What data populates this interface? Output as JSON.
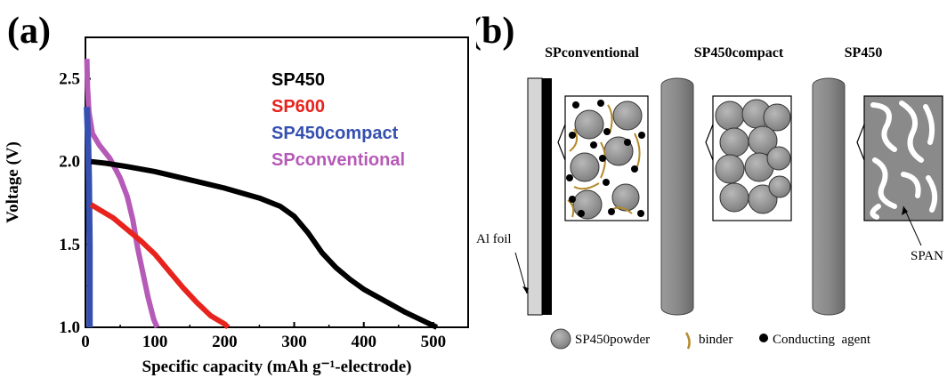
{
  "panel_a": {
    "label": "(a)"
  },
  "panel_b": {
    "label": "(b)",
    "column_titles": [
      "SPconventional",
      "SP450compact",
      "SP450"
    ],
    "al_foil_label": "Al foil",
    "span_label": "SPAN",
    "legend": {
      "powder": "SP450powder",
      "binder": "binder",
      "agent": "Conducting  agent"
    },
    "colors": {
      "powder": "#8c8c8c",
      "binder": "#b48a2a",
      "agent": "#000000",
      "slab": "#7a7a7a"
    }
  },
  "chart_data": {
    "type": "line",
    "xlabel": "Specific capacity (mAh g⁻¹-electrode)",
    "ylabel": "Voltage (V)",
    "xlim": [
      0,
      550
    ],
    "ylim": [
      1.0,
      2.75
    ],
    "xticks": [
      0,
      100,
      200,
      300,
      400,
      500
    ],
    "yticks": [
      1.0,
      1.5,
      2.0,
      2.5
    ],
    "ytick_labels": [
      "1.0",
      "1.5",
      "2.0",
      "2.5"
    ],
    "xtick_labels": [
      "0",
      "100",
      "200",
      "300",
      "400",
      "500"
    ],
    "legend_placement": "top-right",
    "grid": false,
    "series": [
      {
        "name": "SP450",
        "color": "#000000",
        "points": [
          [
            8,
            2.0
          ],
          [
            30,
            1.99
          ],
          [
            60,
            1.97
          ],
          [
            100,
            1.94
          ],
          [
            150,
            1.89
          ],
          [
            200,
            1.84
          ],
          [
            250,
            1.78
          ],
          [
            280,
            1.73
          ],
          [
            300,
            1.67
          ],
          [
            320,
            1.57
          ],
          [
            340,
            1.45
          ],
          [
            360,
            1.36
          ],
          [
            380,
            1.29
          ],
          [
            400,
            1.23
          ],
          [
            430,
            1.16
          ],
          [
            460,
            1.09
          ],
          [
            490,
            1.03
          ],
          [
            505,
            1.0
          ]
        ]
      },
      {
        "name": "SP600",
        "color": "#e8231e",
        "points": [
          [
            8,
            1.74
          ],
          [
            20,
            1.71
          ],
          [
            40,
            1.66
          ],
          [
            60,
            1.59
          ],
          [
            80,
            1.52
          ],
          [
            100,
            1.44
          ],
          [
            120,
            1.34
          ],
          [
            140,
            1.24
          ],
          [
            160,
            1.15
          ],
          [
            180,
            1.07
          ],
          [
            200,
            1.02
          ],
          [
            205,
            1.0
          ]
        ]
      },
      {
        "name": "SP450compact",
        "color": "#3550b0",
        "points": [
          [
            2,
            2.33
          ],
          [
            4,
            2.1
          ],
          [
            5,
            1.9
          ],
          [
            6,
            1.5
          ],
          [
            6,
            1.0
          ]
        ]
      },
      {
        "name": "SPconventional",
        "color": "#b65ab8",
        "points": [
          [
            2,
            2.62
          ],
          [
            3,
            2.45
          ],
          [
            5,
            2.3
          ],
          [
            10,
            2.17
          ],
          [
            20,
            2.1
          ],
          [
            35,
            2.02
          ],
          [
            50,
            1.9
          ],
          [
            60,
            1.79
          ],
          [
            68,
            1.65
          ],
          [
            75,
            1.48
          ],
          [
            82,
            1.34
          ],
          [
            90,
            1.18
          ],
          [
            98,
            1.05
          ],
          [
            103,
            1.0
          ]
        ]
      }
    ]
  }
}
